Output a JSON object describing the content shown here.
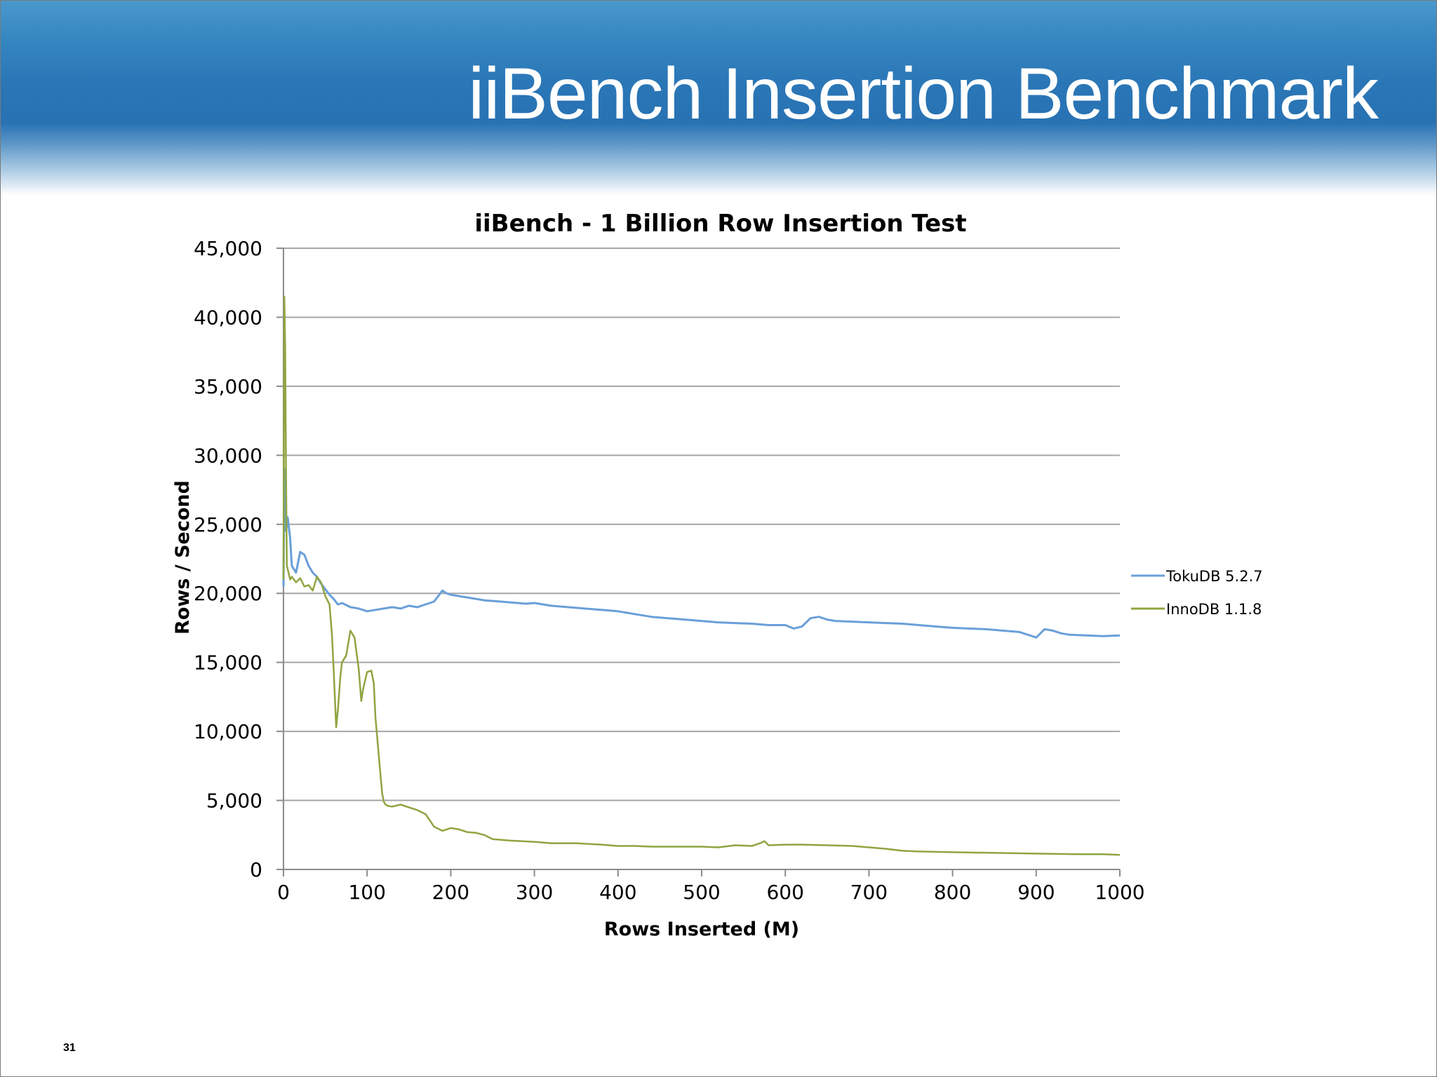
{
  "slide": {
    "title": "iiBench Insertion Benchmark",
    "page_number": "31"
  },
  "chart_data": {
    "type": "line",
    "title": "iiBench - 1 Billion Row Insertion Test",
    "xlabel": "Rows Inserted (M)",
    "ylabel": "Rows / Second",
    "xlim": [
      0,
      1000
    ],
    "ylim": [
      0,
      45000
    ],
    "x_ticks": [
      0,
      100,
      200,
      300,
      400,
      500,
      600,
      700,
      800,
      900,
      1000
    ],
    "x_tick_labels": [
      "0",
      "100",
      "200",
      "300",
      "400",
      "500",
      "600",
      "700",
      "800",
      "900",
      "1000"
    ],
    "y_ticks": [
      0,
      5000,
      10000,
      15000,
      20000,
      25000,
      30000,
      35000,
      40000,
      45000
    ],
    "y_tick_labels": [
      "0",
      "5,000",
      "10,000",
      "15,000",
      "20,000",
      "25,000",
      "30,000",
      "35,000",
      "40,000",
      "45,000"
    ],
    "grid": true,
    "legend_position": "right",
    "series": [
      {
        "name": "TokuDB 5.2.7",
        "color": "#6a9fd9",
        "x": [
          0,
          1,
          2,
          3,
          5,
          8,
          10,
          12,
          15,
          20,
          25,
          30,
          35,
          40,
          45,
          50,
          55,
          60,
          65,
          70,
          80,
          90,
          100,
          110,
          120,
          130,
          140,
          150,
          160,
          170,
          180,
          185,
          190,
          195,
          200,
          210,
          220,
          230,
          240,
          250,
          260,
          270,
          280,
          290,
          300,
          320,
          340,
          360,
          380,
          400,
          420,
          440,
          460,
          480,
          500,
          520,
          540,
          560,
          580,
          600,
          610,
          620,
          630,
          640,
          650,
          660,
          680,
          700,
          720,
          740,
          760,
          780,
          800,
          820,
          840,
          860,
          880,
          890,
          900,
          910,
          920,
          930,
          940,
          960,
          980,
          1000
        ],
        "y": [
          20500,
          29000,
          25000,
          24500,
          25500,
          24000,
          22000,
          21800,
          21500,
          23000,
          22800,
          22000,
          21500,
          21200,
          20700,
          20300,
          19900,
          19600,
          19200,
          19300,
          19000,
          18900,
          18700,
          18800,
          18900,
          19000,
          18900,
          19100,
          19000,
          19200,
          19400,
          19800,
          20200,
          20000,
          19900,
          19800,
          19700,
          19600,
          19500,
          19450,
          19400,
          19350,
          19300,
          19250,
          19300,
          19100,
          19000,
          18900,
          18800,
          18700,
          18500,
          18300,
          18200,
          18100,
          18000,
          17900,
          17850,
          17800,
          17700,
          17700,
          17450,
          17600,
          18200,
          18300,
          18100,
          18000,
          17950,
          17900,
          17850,
          17800,
          17700,
          17600,
          17500,
          17450,
          17400,
          17300,
          17200,
          17000,
          16800,
          17400,
          17300,
          17100,
          17000,
          16950,
          16900,
          16950
        ]
      },
      {
        "name": "InnoDB 1.1.8",
        "color": "#8fa541",
        "x": [
          0,
          1,
          2,
          3,
          4,
          6,
          8,
          10,
          15,
          20,
          25,
          30,
          35,
          40,
          45,
          50,
          55,
          58,
          60,
          63,
          65,
          68,
          70,
          75,
          80,
          85,
          90,
          93,
          95,
          100,
          105,
          108,
          110,
          115,
          118,
          120,
          122,
          125,
          130,
          140,
          150,
          160,
          170,
          180,
          190,
          200,
          210,
          220,
          230,
          240,
          250,
          270,
          300,
          320,
          350,
          380,
          400,
          420,
          440,
          460,
          500,
          520,
          540,
          560,
          570,
          575,
          580,
          600,
          620,
          650,
          680,
          700,
          720,
          740,
          760,
          800,
          850,
          900,
          950,
          980,
          1000
        ],
        "y": [
          21000,
          41500,
          38000,
          29000,
          22000,
          21500,
          21000,
          21200,
          20800,
          21100,
          20500,
          20600,
          20200,
          21200,
          20800,
          19800,
          19200,
          17000,
          14500,
          10300,
          11500,
          14000,
          15000,
          15500,
          17300,
          16800,
          14500,
          12200,
          13000,
          14300,
          14400,
          13500,
          11000,
          7500,
          5500,
          4900,
          4700,
          4600,
          4550,
          4700,
          4500,
          4300,
          4000,
          3100,
          2800,
          3000,
          2900,
          2700,
          2650,
          2500,
          2200,
          2100,
          2000,
          1900,
          1900,
          1800,
          1700,
          1700,
          1650,
          1650,
          1650,
          1600,
          1750,
          1700,
          1900,
          2050,
          1750,
          1800,
          1800,
          1750,
          1700,
          1600,
          1500,
          1350,
          1300,
          1250,
          1200,
          1150,
          1100,
          1100,
          1050
        ]
      }
    ]
  }
}
